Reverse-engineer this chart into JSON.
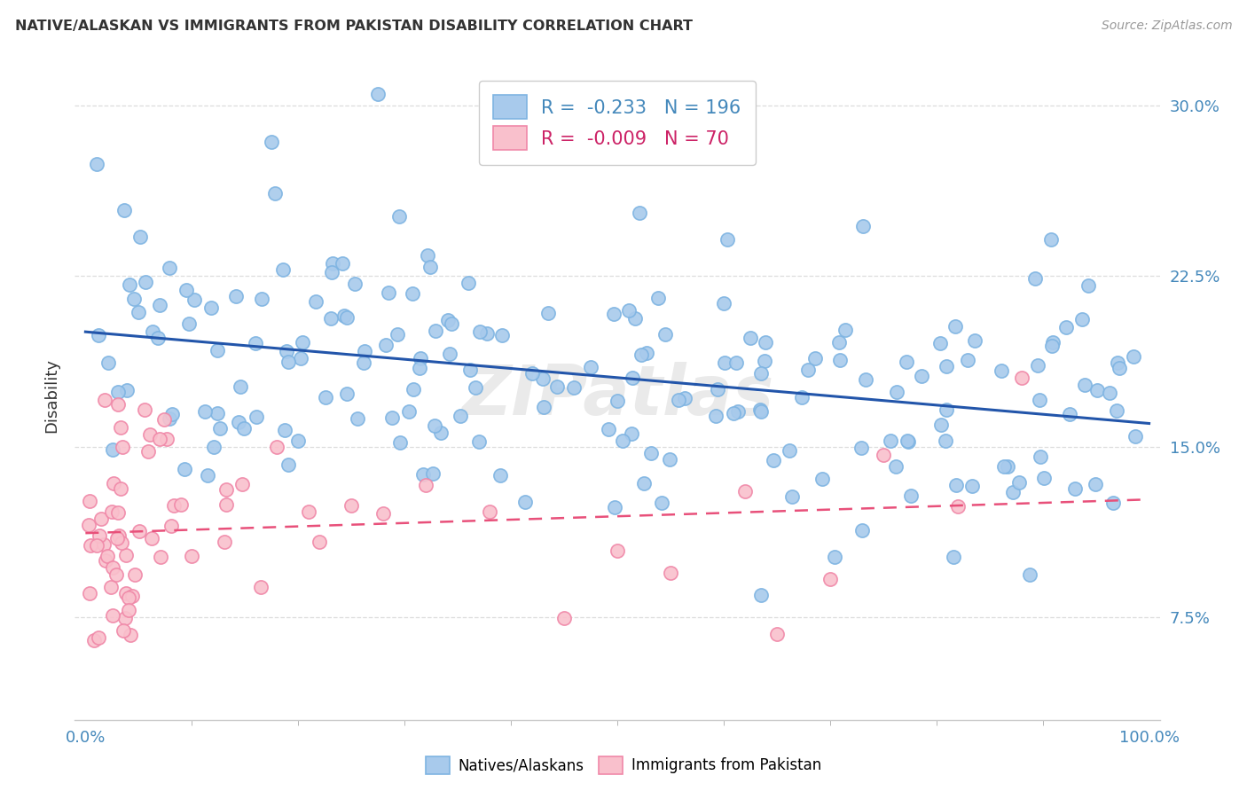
{
  "title": "NATIVE/ALASKAN VS IMMIGRANTS FROM PAKISTAN DISABILITY CORRELATION CHART",
  "source": "Source: ZipAtlas.com",
  "ylabel": "Disability",
  "yticks": [
    "7.5%",
    "15.0%",
    "22.5%",
    "30.0%"
  ],
  "ytick_vals": [
    0.075,
    0.15,
    0.225,
    0.3
  ],
  "xlim": [
    -0.01,
    1.01
  ],
  "ylim": [
    0.03,
    0.315
  ],
  "legend_blue_r": "-0.233",
  "legend_blue_n": "196",
  "legend_pink_r": "-0.009",
  "legend_pink_n": "70",
  "blue_color": "#A8CAEC",
  "blue_edge_color": "#7EB4E2",
  "pink_color": "#F9C0CC",
  "pink_edge_color": "#F088A8",
  "blue_line_color": "#2255AA",
  "pink_line_color": "#E8507A",
  "watermark": "ZIPatlas",
  "background_color": "#FFFFFF",
  "grid_color": "#DDDDDD",
  "tick_label_color": "#4488BB",
  "title_color": "#333333",
  "source_color": "#999999",
  "ylabel_color": "#333333"
}
